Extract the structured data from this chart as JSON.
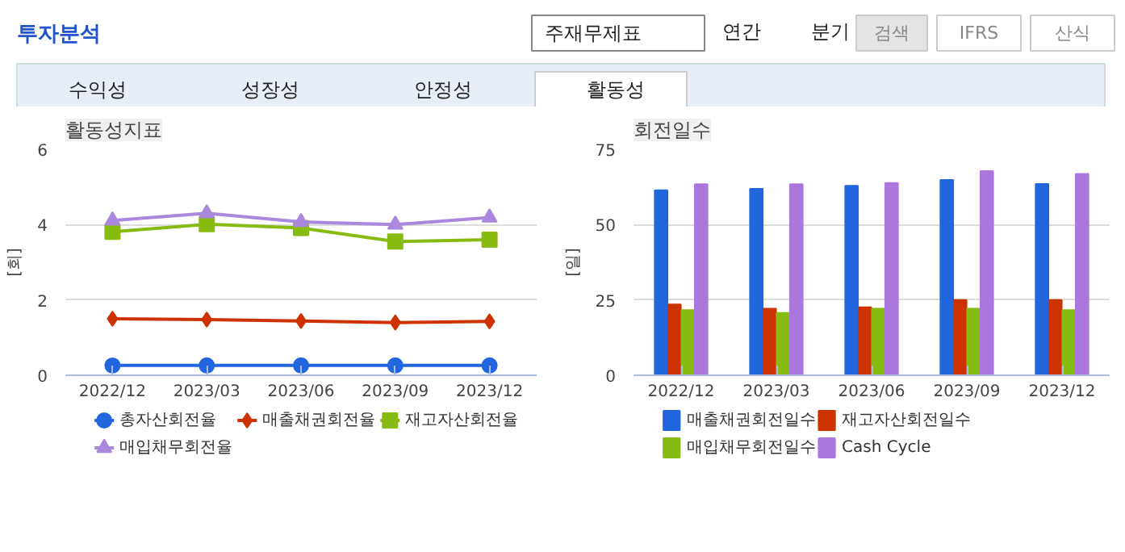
{
  "chart_data": [
    {
      "type": "line",
      "title": "활동성지표",
      "ylabel": "[회]",
      "categories": [
        "2022/12",
        "2023/03",
        "2023/06",
        "2023/09",
        "2023/12"
      ],
      "ylim": [
        0,
        6
      ],
      "yticks": [
        0,
        2,
        4,
        6
      ],
      "grid": "y",
      "legend": "bottom",
      "annotations": [
        "투자분석",
        "주재무제표",
        "연간",
        "분기",
        "검색",
        "IFRS",
        "산식",
        "수익성",
        "성장성",
        "안정성",
        "활동성"
      ],
      "series": [
        {
          "name": "총자산회전율",
          "color": "#2266dd",
          "marker": "circle",
          "values": [
            0.26,
            0.26,
            0.26,
            0.26,
            0.26
          ]
        },
        {
          "name": "매출채권회전율",
          "color": "#cc3300",
          "marker": "diamond",
          "values": [
            1.5,
            1.48,
            1.44,
            1.4,
            1.43
          ]
        },
        {
          "name": "재고자산회전율",
          "color": "#88bb11",
          "marker": "square",
          "values": [
            3.81,
            4.01,
            3.91,
            3.55,
            3.6
          ]
        },
        {
          "name": "매입채무회전율",
          "color": "#aa88dd",
          "marker": "triangle",
          "values": [
            4.11,
            4.3,
            4.07,
            4.0,
            4.19
          ]
        }
      ]
    },
    {
      "type": "bar",
      "title": "회전일수",
      "ylabel": "[일]",
      "categories": [
        "2022/12",
        "2023/03",
        "2023/06",
        "2023/09",
        "2023/12"
      ],
      "ylim": [
        0,
        75
      ],
      "yticks": [
        0,
        25,
        50,
        75
      ],
      "grid": "y",
      "legend": "bottom",
      "series": [
        {
          "name": "매출채권회전일수",
          "color": "#2266dd",
          "values": [
            61.4,
            61.9,
            62.9,
            64.8,
            63.5
          ]
        },
        {
          "name": "재고자산회전일수",
          "color": "#cc3300",
          "values": [
            23.5,
            22.1,
            22.6,
            25.0,
            25.0
          ]
        },
        {
          "name": "매입채무회전일수",
          "color": "#88bb11",
          "values": [
            21.6,
            20.7,
            22.1,
            22.1,
            21.6
          ]
        },
        {
          "name": "Cash Cycle",
          "color": "#aa77dd",
          "values": [
            63.4,
            63.4,
            63.8,
            67.8,
            66.8
          ]
        }
      ]
    }
  ]
}
